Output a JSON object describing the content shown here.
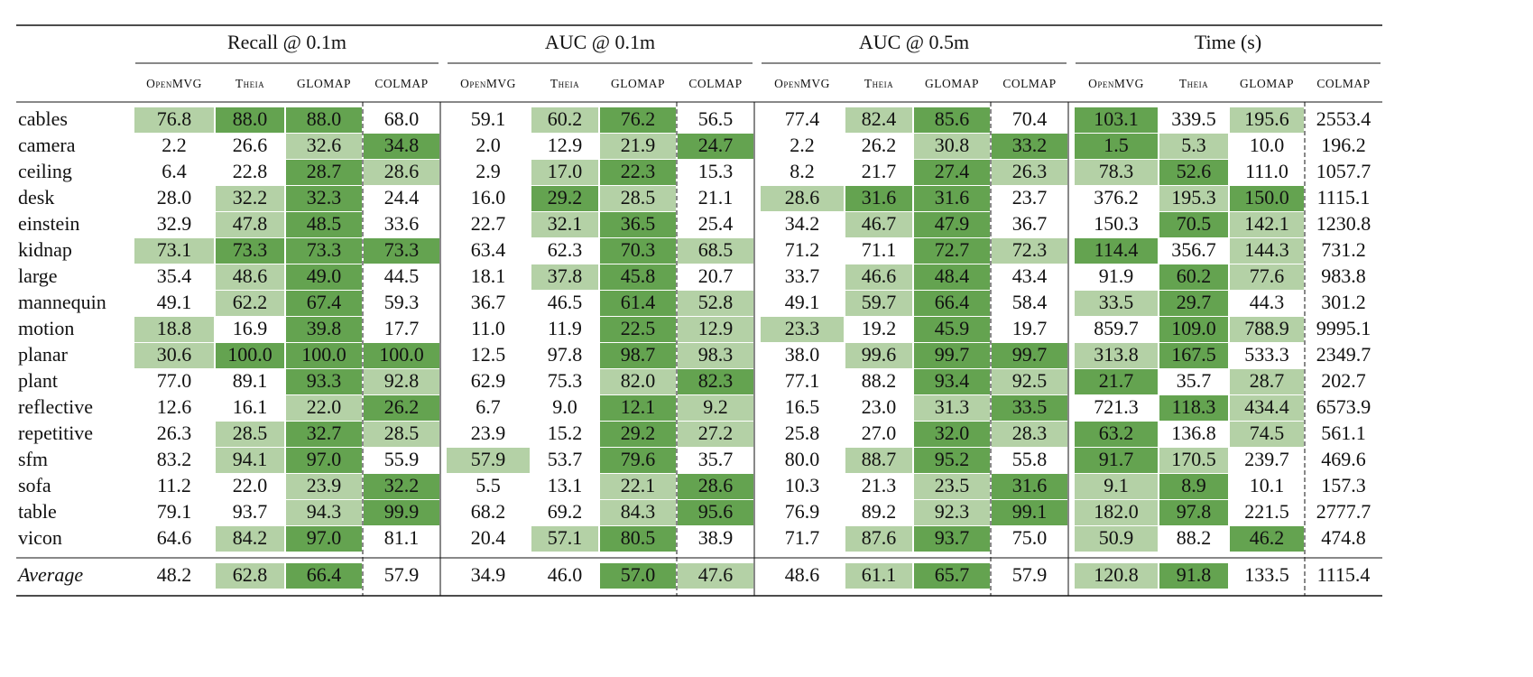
{
  "table": {
    "column_groups": [
      {
        "title": "Recall @ 0.1m",
        "columns": [
          "OpenMVG",
          "Theia",
          "GLOMAP",
          "COLMAP"
        ]
      },
      {
        "title": "AUC @ 0.1m",
        "columns": [
          "OpenMVG",
          "Theia",
          "GLOMAP",
          "COLMAP"
        ]
      },
      {
        "title": "AUC @ 0.5m",
        "columns": [
          "OpenMVG",
          "Theia",
          "GLOMAP",
          "COLMAP"
        ]
      },
      {
        "title": "Time (s)",
        "columns": [
          "OpenMVG",
          "Theia",
          "GLOMAP",
          "COLMAP"
        ]
      }
    ],
    "rows": [
      {
        "name": "cables",
        "cells": [
          "76.8",
          "88.0",
          "88.0",
          "68.0",
          "59.1",
          "60.2",
          "76.2",
          "56.5",
          "77.4",
          "82.4",
          "85.6",
          "70.4",
          "103.1",
          "339.5",
          "195.6",
          "2553.4"
        ],
        "fills": [
          "#b4d1a6",
          "#64a350",
          "#64a350",
          null,
          null,
          "#b4d1a6",
          "#64a350",
          null,
          null,
          "#b4d1a6",
          "#64a350",
          null,
          "#64a350",
          null,
          "#b4d1a6",
          null
        ]
      },
      {
        "name": "camera",
        "cells": [
          "2.2",
          "26.6",
          "32.6",
          "34.8",
          "2.0",
          "12.9",
          "21.9",
          "24.7",
          "2.2",
          "26.2",
          "30.8",
          "33.2",
          "1.5",
          "5.3",
          "10.0",
          "196.2"
        ],
        "fills": [
          null,
          null,
          "#b4d1a6",
          "#64a350",
          null,
          null,
          "#b4d1a6",
          "#64a350",
          null,
          null,
          "#b4d1a6",
          "#64a350",
          "#64a350",
          "#b4d1a6",
          null,
          null
        ]
      },
      {
        "name": "ceiling",
        "cells": [
          "6.4",
          "22.8",
          "28.7",
          "28.6",
          "2.9",
          "17.0",
          "22.3",
          "15.3",
          "8.2",
          "21.7",
          "27.4",
          "26.3",
          "78.3",
          "52.6",
          "111.0",
          "1057.7"
        ],
        "fills": [
          null,
          null,
          "#64a350",
          "#b4d1a6",
          null,
          "#b4d1a6",
          "#64a350",
          null,
          null,
          null,
          "#64a350",
          "#b4d1a6",
          "#b4d1a6",
          "#64a350",
          null,
          null
        ]
      },
      {
        "name": "desk",
        "cells": [
          "28.0",
          "32.2",
          "32.3",
          "24.4",
          "16.0",
          "29.2",
          "28.5",
          "21.1",
          "28.6",
          "31.6",
          "31.6",
          "23.7",
          "376.2",
          "195.3",
          "150.0",
          "1115.1"
        ],
        "fills": [
          null,
          "#b4d1a6",
          "#64a350",
          null,
          null,
          "#64a350",
          "#b4d1a6",
          null,
          "#b4d1a6",
          "#64a350",
          "#64a350",
          null,
          null,
          "#b4d1a6",
          "#64a350",
          null
        ]
      },
      {
        "name": "einstein",
        "cells": [
          "32.9",
          "47.8",
          "48.5",
          "33.6",
          "22.7",
          "32.1",
          "36.5",
          "25.4",
          "34.2",
          "46.7",
          "47.9",
          "36.7",
          "150.3",
          "70.5",
          "142.1",
          "1230.8"
        ],
        "fills": [
          null,
          "#b4d1a6",
          "#64a350",
          null,
          null,
          "#b4d1a6",
          "#64a350",
          null,
          null,
          "#b4d1a6",
          "#64a350",
          null,
          null,
          "#64a350",
          "#b4d1a6",
          null
        ]
      },
      {
        "name": "kidnap",
        "cells": [
          "73.1",
          "73.3",
          "73.3",
          "73.3",
          "63.4",
          "62.3",
          "70.3",
          "68.5",
          "71.2",
          "71.1",
          "72.7",
          "72.3",
          "114.4",
          "356.7",
          "144.3",
          "731.2"
        ],
        "fills": [
          "#b4d1a6",
          "#64a350",
          "#64a350",
          "#64a350",
          null,
          null,
          "#64a350",
          "#b4d1a6",
          null,
          null,
          "#64a350",
          "#b4d1a6",
          "#64a350",
          null,
          "#b4d1a6",
          null
        ]
      },
      {
        "name": "large",
        "cells": [
          "35.4",
          "48.6",
          "49.0",
          "44.5",
          "18.1",
          "37.8",
          "45.8",
          "20.7",
          "33.7",
          "46.6",
          "48.4",
          "43.4",
          "91.9",
          "60.2",
          "77.6",
          "983.8"
        ],
        "fills": [
          null,
          "#b4d1a6",
          "#64a350",
          null,
          null,
          "#b4d1a6",
          "#64a350",
          null,
          null,
          "#b4d1a6",
          "#64a350",
          null,
          null,
          "#64a350",
          "#b4d1a6",
          null
        ]
      },
      {
        "name": "mannequin",
        "cells": [
          "49.1",
          "62.2",
          "67.4",
          "59.3",
          "36.7",
          "46.5",
          "61.4",
          "52.8",
          "49.1",
          "59.7",
          "66.4",
          "58.4",
          "33.5",
          "29.7",
          "44.3",
          "301.2"
        ],
        "fills": [
          null,
          "#b4d1a6",
          "#64a350",
          null,
          null,
          null,
          "#64a350",
          "#b4d1a6",
          null,
          "#b4d1a6",
          "#64a350",
          null,
          "#b4d1a6",
          "#64a350",
          null,
          null
        ]
      },
      {
        "name": "motion",
        "cells": [
          "18.8",
          "16.9",
          "39.8",
          "17.7",
          "11.0",
          "11.9",
          "22.5",
          "12.9",
          "23.3",
          "19.2",
          "45.9",
          "19.7",
          "859.7",
          "109.0",
          "788.9",
          "9995.1"
        ],
        "fills": [
          "#b4d1a6",
          null,
          "#64a350",
          null,
          null,
          null,
          "#64a350",
          "#b4d1a6",
          "#b4d1a6",
          null,
          "#64a350",
          null,
          null,
          "#64a350",
          "#b4d1a6",
          null
        ]
      },
      {
        "name": "planar",
        "cells": [
          "30.6",
          "100.0",
          "100.0",
          "100.0",
          "12.5",
          "97.8",
          "98.7",
          "98.3",
          "38.0",
          "99.6",
          "99.7",
          "99.7",
          "313.8",
          "167.5",
          "533.3",
          "2349.7"
        ],
        "fills": [
          "#b4d1a6",
          "#64a350",
          "#64a350",
          "#64a350",
          null,
          null,
          "#64a350",
          "#b4d1a6",
          null,
          "#b4d1a6",
          "#64a350",
          "#64a350",
          "#b4d1a6",
          "#64a350",
          null,
          null
        ]
      },
      {
        "name": "plant",
        "cells": [
          "77.0",
          "89.1",
          "93.3",
          "92.8",
          "62.9",
          "75.3",
          "82.0",
          "82.3",
          "77.1",
          "88.2",
          "93.4",
          "92.5",
          "21.7",
          "35.7",
          "28.7",
          "202.7"
        ],
        "fills": [
          null,
          null,
          "#64a350",
          "#b4d1a6",
          null,
          null,
          "#b4d1a6",
          "#64a350",
          null,
          null,
          "#64a350",
          "#b4d1a6",
          "#64a350",
          null,
          "#b4d1a6",
          null
        ]
      },
      {
        "name": "reflective",
        "cells": [
          "12.6",
          "16.1",
          "22.0",
          "26.2",
          "6.7",
          "9.0",
          "12.1",
          "9.2",
          "16.5",
          "23.0",
          "31.3",
          "33.5",
          "721.3",
          "118.3",
          "434.4",
          "6573.9"
        ],
        "fills": [
          null,
          null,
          "#b4d1a6",
          "#64a350",
          null,
          null,
          "#64a350",
          "#b4d1a6",
          null,
          null,
          "#b4d1a6",
          "#64a350",
          null,
          "#64a350",
          "#b4d1a6",
          null
        ]
      },
      {
        "name": "repetitive",
        "cells": [
          "26.3",
          "28.5",
          "32.7",
          "28.5",
          "23.9",
          "15.2",
          "29.2",
          "27.2",
          "25.8",
          "27.0",
          "32.0",
          "28.3",
          "63.2",
          "136.8",
          "74.5",
          "561.1"
        ],
        "fills": [
          null,
          "#b4d1a6",
          "#64a350",
          "#b4d1a6",
          null,
          null,
          "#64a350",
          "#b4d1a6",
          null,
          null,
          "#64a350",
          "#b4d1a6",
          "#64a350",
          null,
          "#b4d1a6",
          null
        ]
      },
      {
        "name": "sfm",
        "cells": [
          "83.2",
          "94.1",
          "97.0",
          "55.9",
          "57.9",
          "53.7",
          "79.6",
          "35.7",
          "80.0",
          "88.7",
          "95.2",
          "55.8",
          "91.7",
          "170.5",
          "239.7",
          "469.6"
        ],
        "fills": [
          null,
          "#b4d1a6",
          "#64a350",
          null,
          "#b4d1a6",
          null,
          "#64a350",
          null,
          null,
          "#b4d1a6",
          "#64a350",
          null,
          "#64a350",
          "#b4d1a6",
          null,
          null
        ]
      },
      {
        "name": "sofa",
        "cells": [
          "11.2",
          "22.0",
          "23.9",
          "32.2",
          "5.5",
          "13.1",
          "22.1",
          "28.6",
          "10.3",
          "21.3",
          "23.5",
          "31.6",
          "9.1",
          "8.9",
          "10.1",
          "157.3"
        ],
        "fills": [
          null,
          null,
          "#b4d1a6",
          "#64a350",
          null,
          null,
          "#b4d1a6",
          "#64a350",
          null,
          null,
          "#b4d1a6",
          "#64a350",
          "#b4d1a6",
          "#64a350",
          null,
          null
        ]
      },
      {
        "name": "table",
        "cells": [
          "79.1",
          "93.7",
          "94.3",
          "99.9",
          "68.2",
          "69.2",
          "84.3",
          "95.6",
          "76.9",
          "89.2",
          "92.3",
          "99.1",
          "182.0",
          "97.8",
          "221.5",
          "2777.7"
        ],
        "fills": [
          null,
          null,
          "#b4d1a6",
          "#64a350",
          null,
          null,
          "#b4d1a6",
          "#64a350",
          null,
          null,
          "#b4d1a6",
          "#64a350",
          "#b4d1a6",
          "#64a350",
          null,
          null
        ]
      },
      {
        "name": "vicon",
        "cells": [
          "64.6",
          "84.2",
          "97.0",
          "81.1",
          "20.4",
          "57.1",
          "80.5",
          "38.9",
          "71.7",
          "87.6",
          "93.7",
          "75.0",
          "50.9",
          "88.2",
          "46.2",
          "474.8"
        ],
        "fills": [
          null,
          "#b4d1a6",
          "#64a350",
          null,
          null,
          "#b4d1a6",
          "#64a350",
          null,
          null,
          "#b4d1a6",
          "#64a350",
          null,
          "#b4d1a6",
          null,
          "#64a350",
          null
        ]
      }
    ],
    "footer": {
      "name": "Average",
      "cells": [
        "48.2",
        "62.8",
        "66.4",
        "57.9",
        "34.9",
        "46.0",
        "57.0",
        "47.6",
        "48.6",
        "61.1",
        "65.7",
        "57.9",
        "120.8",
        "91.8",
        "133.5",
        "1115.4"
      ],
      "fills": [
        null,
        "#b4d1a6",
        "#64a350",
        null,
        null,
        null,
        "#64a350",
        "#b4d1a6",
        null,
        "#b4d1a6",
        "#64a350",
        null,
        "#b4d1a6",
        "#64a350",
        null,
        null
      ]
    }
  }
}
